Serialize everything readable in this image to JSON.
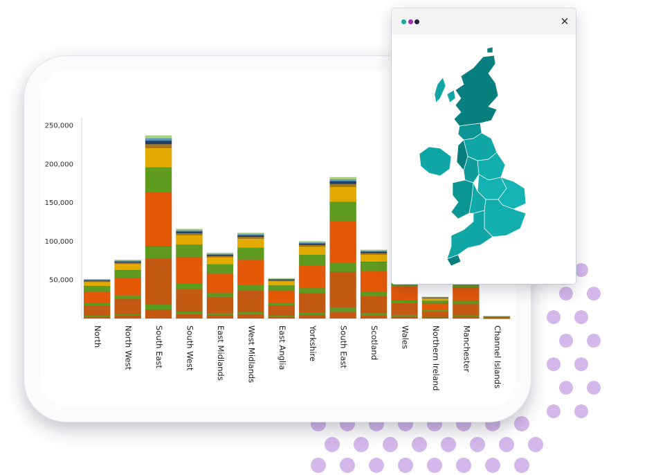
{
  "window": {
    "close_glyph": "✕",
    "dot_colors": [
      "#17a5a5",
      "#9b2fb0",
      "#2a1a48"
    ]
  },
  "colors": {
    "teal_dark": "#077f7f",
    "teal_light": "#10a6a6",
    "dots": "#c9a6e6"
  },
  "chart_data": {
    "type": "bar",
    "stacked": true,
    "title": "",
    "xlabel": "",
    "ylabel": "",
    "ylim": [
      0,
      260000
    ],
    "yticks": [
      "50,000",
      "100,000",
      "150,000",
      "200,000",
      "250,000"
    ],
    "grid": false,
    "categories": [
      "North",
      "North West",
      "South East",
      "South West",
      "East Midlands",
      "West Midlands",
      "East Anglia",
      "Yorkshire",
      "South East",
      "Scotland",
      "Wales",
      "Northern Ireland",
      "Manchester",
      "Channel Islands"
    ],
    "totals": [
      51000,
      76000,
      237000,
      116000,
      85000,
      111000,
      52000,
      100000,
      183000,
      89000,
      60000,
      28000,
      58000,
      3000
    ],
    "colors": [
      "#c45a12",
      "#e45908",
      "#5f9b1f",
      "#e3ab00",
      "#a2751e",
      "#1e3f64",
      "#5c97c3",
      "#a9d27c"
    ]
  }
}
